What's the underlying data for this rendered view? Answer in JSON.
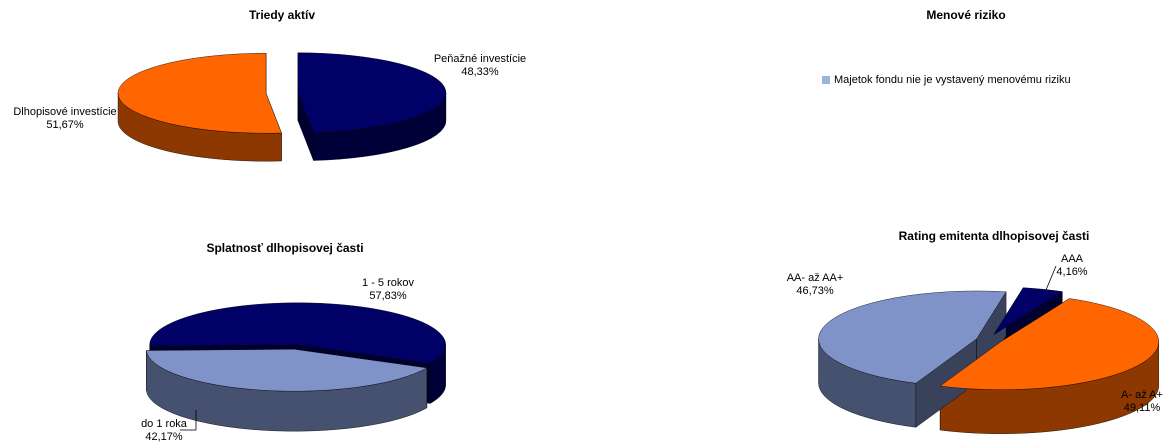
{
  "chart_data": [
    {
      "type": "pie",
      "title": "Triedy aktív",
      "slices": [
        {
          "name": "Peňažné investície",
          "value": 48.33,
          "label": "48,33%",
          "color": "#000066"
        },
        {
          "name": "Dlhopisové investície",
          "value": 51.67,
          "label": "51,67%",
          "color": "#ff6600"
        }
      ]
    },
    {
      "type": "pie",
      "title": "Menové riziko",
      "legend": [
        "Majetok fondu nie je vystavený menovému riziku"
      ],
      "legend_color": "#99b3d9"
    },
    {
      "type": "pie",
      "title": "Splatnosť dlhopisovej časti",
      "slices": [
        {
          "name": "1 - 5 rokov",
          "value": 57.83,
          "label": "57,83%",
          "color": "#000066"
        },
        {
          "name": "do 1 roka",
          "value": 42.17,
          "label": "42,17%",
          "color": "#7f93c9"
        }
      ]
    },
    {
      "type": "pie",
      "title": "Rating emitenta dlhopisovej časti",
      "slices": [
        {
          "name": "AAA",
          "value": 4.16,
          "label": "4,16%",
          "color": "#000066"
        },
        {
          "name": "A-  až A+",
          "value": 49.11,
          "label": "49,11%",
          "color": "#ff6600"
        },
        {
          "name": "AA- až AA+",
          "value": 46.73,
          "label": "46,73%",
          "color": "#7f93c9"
        }
      ]
    }
  ]
}
